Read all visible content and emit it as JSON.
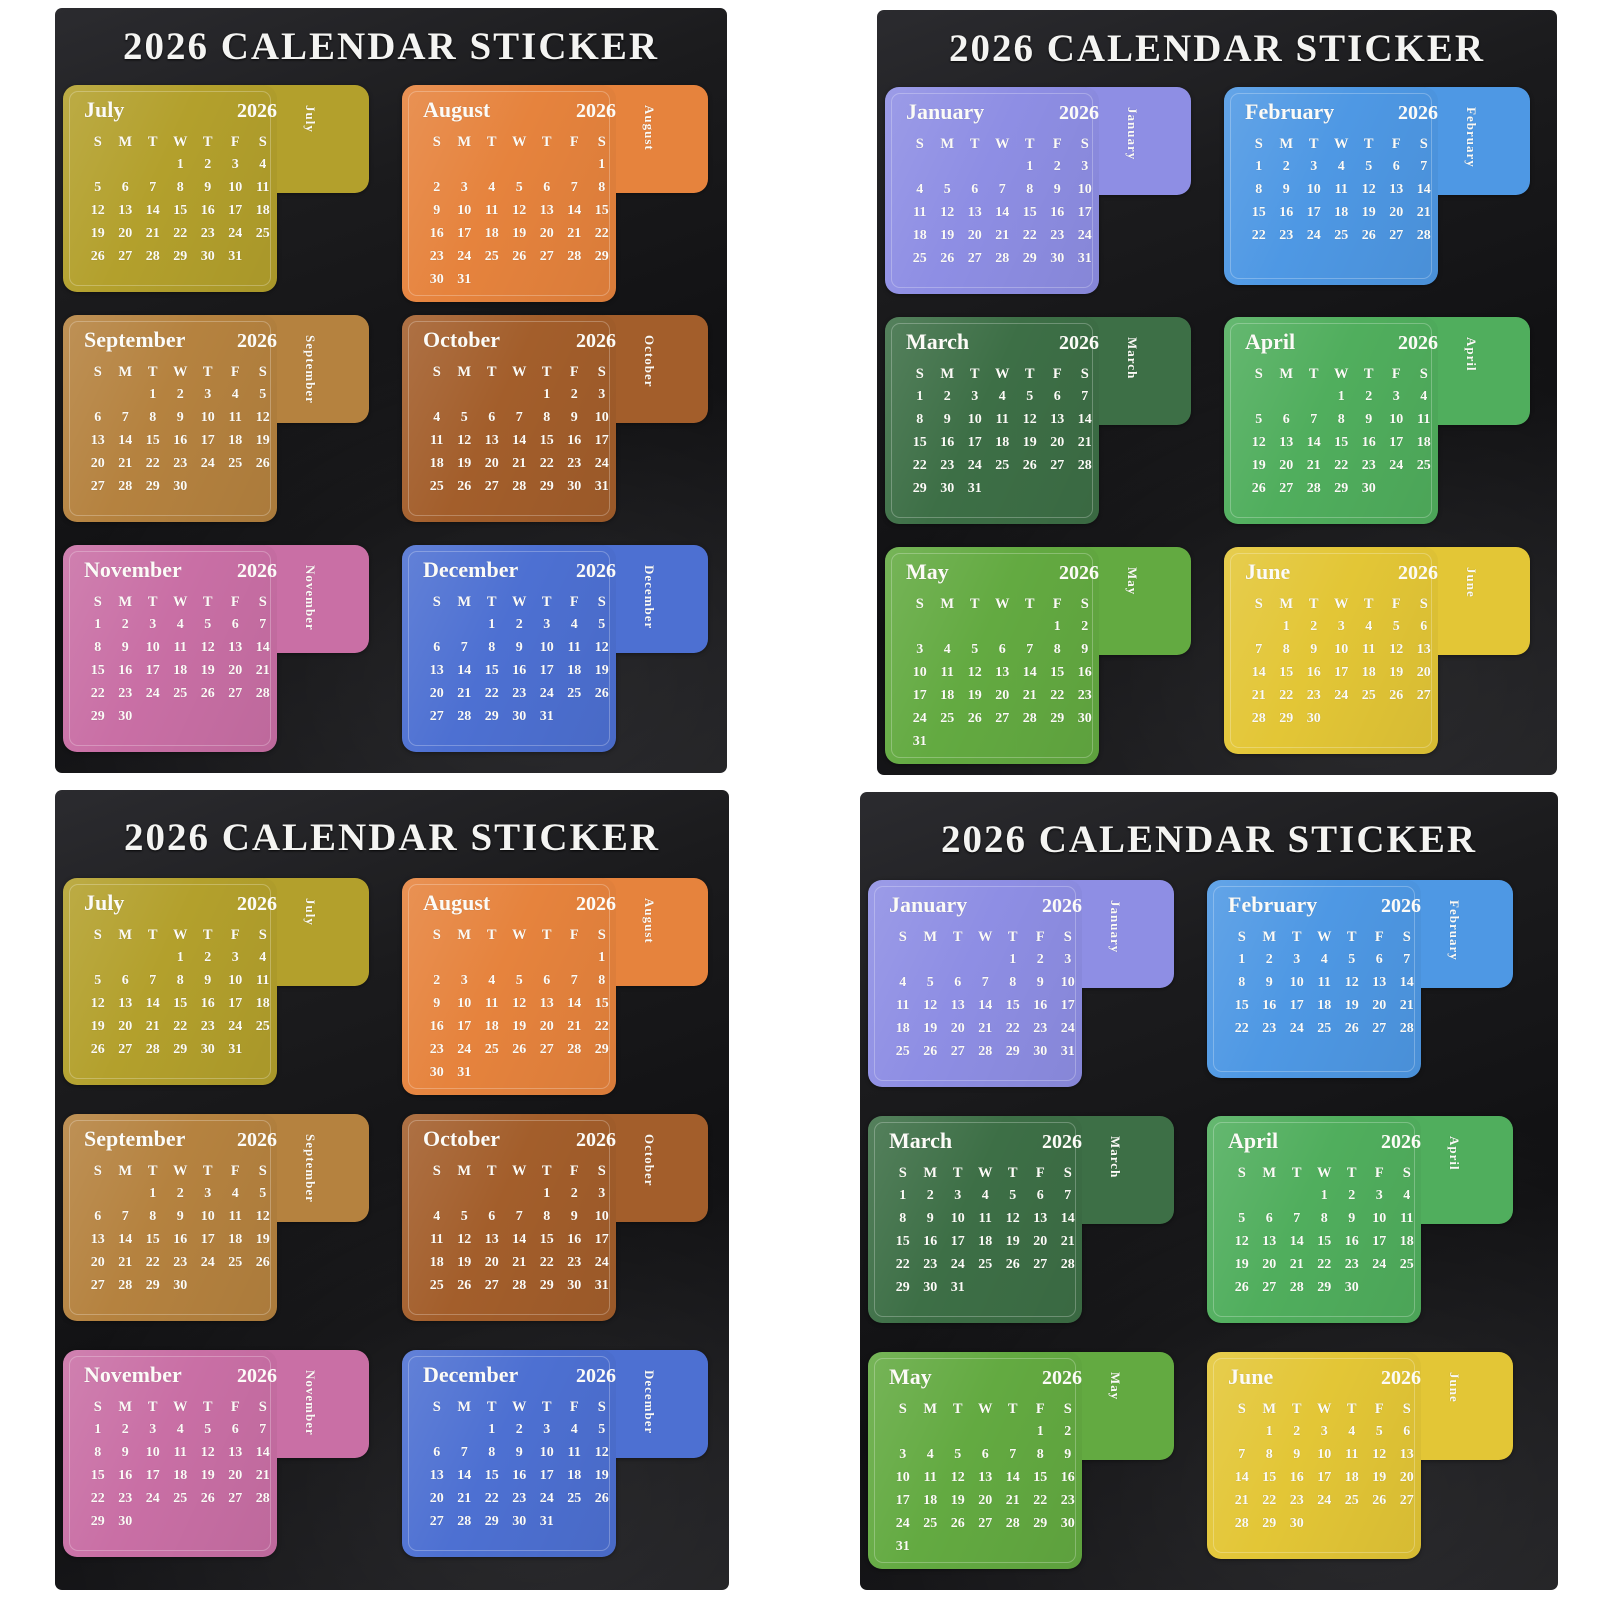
{
  "page": {
    "background_color": "#ffffff",
    "sheet_background_color": "#161618",
    "text_color": "#fcfbf7"
  },
  "year": "2026",
  "weekday_headers": [
    "S",
    "M",
    "T",
    "W",
    "T",
    "F",
    "S"
  ],
  "months": [
    {
      "id": "january",
      "name": "January",
      "tab": "January",
      "color": "#8e8ee4",
      "weeks": [
        [
          "",
          "",
          "",
          "",
          "1",
          "2",
          "3"
        ],
        [
          "4",
          "5",
          "6",
          "7",
          "8",
          "9",
          "10"
        ],
        [
          "11",
          "12",
          "13",
          "14",
          "15",
          "16",
          "17"
        ],
        [
          "18",
          "19",
          "20",
          "21",
          "22",
          "23",
          "24"
        ],
        [
          "25",
          "26",
          "27",
          "28",
          "29",
          "30",
          "31"
        ]
      ]
    },
    {
      "id": "february",
      "name": "February",
      "tab": "February",
      "color": "#4e98e4",
      "weeks": [
        [
          "1",
          "2",
          "3",
          "4",
          "5",
          "6",
          "7"
        ],
        [
          "8",
          "9",
          "10",
          "11",
          "12",
          "13",
          "14"
        ],
        [
          "15",
          "16",
          "17",
          "18",
          "19",
          "20",
          "21"
        ],
        [
          "22",
          "23",
          "24",
          "25",
          "26",
          "27",
          "28"
        ]
      ]
    },
    {
      "id": "march",
      "name": "March",
      "tab": "March",
      "color": "#3d6f46",
      "weeks": [
        [
          "1",
          "2",
          "3",
          "4",
          "5",
          "6",
          "7"
        ],
        [
          "8",
          "9",
          "10",
          "11",
          "12",
          "13",
          "14"
        ],
        [
          "15",
          "16",
          "17",
          "18",
          "19",
          "20",
          "21"
        ],
        [
          "22",
          "23",
          "24",
          "25",
          "26",
          "27",
          "28"
        ],
        [
          "29",
          "30",
          "31",
          "",
          "",
          "",
          ""
        ]
      ]
    },
    {
      "id": "april",
      "name": "April",
      "tab": "April",
      "color": "#50ae5d",
      "weeks": [
        [
          "",
          "",
          "",
          "1",
          "2",
          "3",
          "4"
        ],
        [
          "5",
          "6",
          "7",
          "8",
          "9",
          "10",
          "11"
        ],
        [
          "12",
          "13",
          "14",
          "15",
          "16",
          "17",
          "18"
        ],
        [
          "19",
          "20",
          "21",
          "22",
          "23",
          "24",
          "25"
        ],
        [
          "26",
          "27",
          "28",
          "29",
          "30",
          "",
          ""
        ]
      ]
    },
    {
      "id": "may",
      "name": "May",
      "tab": "May",
      "color": "#63aa41",
      "weeks": [
        [
          "",
          "",
          "",
          "",
          "",
          "1",
          "2"
        ],
        [
          "3",
          "4",
          "5",
          "6",
          "7",
          "8",
          "9"
        ],
        [
          "10",
          "11",
          "12",
          "13",
          "14",
          "15",
          "16"
        ],
        [
          "17",
          "18",
          "19",
          "20",
          "21",
          "22",
          "23"
        ],
        [
          "24",
          "25",
          "26",
          "27",
          "28",
          "29",
          "30"
        ],
        [
          "31",
          "",
          "",
          "",
          "",
          "",
          ""
        ]
      ]
    },
    {
      "id": "june",
      "name": "June",
      "tab": "June",
      "color": "#e3c636",
      "weeks": [
        [
          "",
          "1",
          "2",
          "3",
          "4",
          "5",
          "6"
        ],
        [
          "7",
          "8",
          "9",
          "10",
          "11",
          "12",
          "13"
        ],
        [
          "14",
          "15",
          "16",
          "17",
          "18",
          "19",
          "20"
        ],
        [
          "21",
          "22",
          "23",
          "24",
          "25",
          "26",
          "27"
        ],
        [
          "28",
          "29",
          "30",
          "",
          "",
          "",
          ""
        ]
      ]
    },
    {
      "id": "july",
      "name": "July",
      "tab": "July",
      "color": "#b3a02c",
      "weeks": [
        [
          "",
          "",
          "",
          "1",
          "2",
          "3",
          "4"
        ],
        [
          "5",
          "6",
          "7",
          "8",
          "9",
          "10",
          "11"
        ],
        [
          "12",
          "13",
          "14",
          "15",
          "16",
          "17",
          "18"
        ],
        [
          "19",
          "20",
          "21",
          "22",
          "23",
          "24",
          "25"
        ],
        [
          "26",
          "27",
          "28",
          "29",
          "30",
          "31",
          ""
        ]
      ]
    },
    {
      "id": "august",
      "name": "August",
      "tab": "August",
      "color": "#e6833d",
      "weeks": [
        [
          "",
          "",
          "",
          "",
          "",
          "",
          "1"
        ],
        [
          "2",
          "3",
          "4",
          "5",
          "6",
          "7",
          "8"
        ],
        [
          "9",
          "10",
          "11",
          "12",
          "13",
          "14",
          "15"
        ],
        [
          "16",
          "17",
          "18",
          "19",
          "20",
          "21",
          "22"
        ],
        [
          "23",
          "24",
          "25",
          "26",
          "27",
          "28",
          "29"
        ],
        [
          "30",
          "31",
          "",
          "",
          "",
          "",
          ""
        ]
      ]
    },
    {
      "id": "september",
      "name": "September",
      "tab": "September",
      "color": "#b5823f",
      "weeks": [
        [
          "",
          "",
          "1",
          "2",
          "3",
          "4",
          "5"
        ],
        [
          "6",
          "7",
          "8",
          "9",
          "10",
          "11",
          "12"
        ],
        [
          "13",
          "14",
          "15",
          "16",
          "17",
          "18",
          "19"
        ],
        [
          "20",
          "21",
          "22",
          "23",
          "24",
          "25",
          "26"
        ],
        [
          "27",
          "28",
          "29",
          "30",
          "",
          "",
          ""
        ]
      ]
    },
    {
      "id": "october",
      "name": "October",
      "tab": "October",
      "color": "#a35e2b",
      "weeks": [
        [
          "",
          "",
          "",
          "",
          "1",
          "2",
          "3"
        ],
        [
          "4",
          "5",
          "6",
          "7",
          "8",
          "9",
          "10"
        ],
        [
          "11",
          "12",
          "13",
          "14",
          "15",
          "16",
          "17"
        ],
        [
          "18",
          "19",
          "20",
          "21",
          "22",
          "23",
          "24"
        ],
        [
          "25",
          "26",
          "27",
          "28",
          "29",
          "30",
          "31"
        ]
      ]
    },
    {
      "id": "november",
      "name": "November",
      "tab": "November",
      "color": "#c96fa5",
      "weeks": [
        [
          "1",
          "2",
          "3",
          "4",
          "5",
          "6",
          "7"
        ],
        [
          "8",
          "9",
          "10",
          "11",
          "12",
          "13",
          "14"
        ],
        [
          "15",
          "16",
          "17",
          "18",
          "19",
          "20",
          "21"
        ],
        [
          "22",
          "23",
          "24",
          "25",
          "26",
          "27",
          "28"
        ],
        [
          "29",
          "30",
          "",
          "",
          "",
          "",
          ""
        ]
      ]
    },
    {
      "id": "december",
      "name": "December",
      "tab": "December",
      "color": "#4d70d2",
      "weeks": [
        [
          "",
          "",
          "1",
          "2",
          "3",
          "4",
          "5"
        ],
        [
          "6",
          "7",
          "8",
          "9",
          "10",
          "11",
          "12"
        ],
        [
          "13",
          "14",
          "15",
          "16",
          "17",
          "18",
          "19"
        ],
        [
          "20",
          "21",
          "22",
          "23",
          "24",
          "25",
          "26"
        ],
        [
          "27",
          "28",
          "29",
          "30",
          "31",
          "",
          ""
        ]
      ]
    }
  ],
  "sheets": [
    {
      "title": "2026 CALENDAR STICKER",
      "months": [
        "july",
        "august",
        "september",
        "october",
        "november",
        "december"
      ]
    },
    {
      "title": "2026 CALENDAR STICKER",
      "months": [
        "january",
        "february",
        "march",
        "april",
        "may",
        "june"
      ]
    },
    {
      "title": "2026 CALENDAR STICKER",
      "months": [
        "july",
        "august",
        "september",
        "october",
        "november",
        "december"
      ]
    },
    {
      "title": "2026 CALENDAR STICKER",
      "months": [
        "january",
        "february",
        "march",
        "april",
        "may",
        "june"
      ]
    }
  ]
}
